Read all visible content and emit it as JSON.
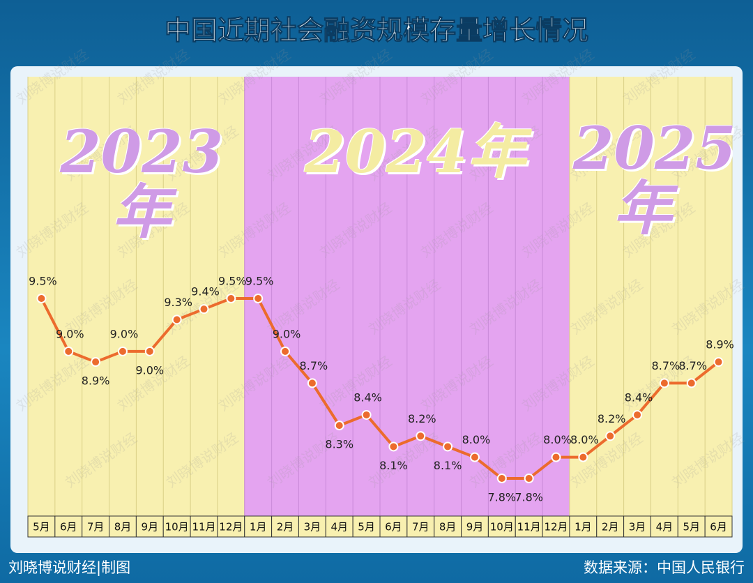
{
  "title": "中国近期社会融资规模存量增长情况",
  "chart_data": {
    "type": "line",
    "color": "#ec6b2d",
    "series": [
      {
        "name": "2023年",
        "band_color": "#f8f0b0",
        "label_color": "#cf9be6",
        "categories": [
          "5月",
          "6月",
          "7月",
          "8月",
          "9月",
          "10月",
          "11月",
          "12月"
        ],
        "values": [
          9.5,
          9.0,
          8.9,
          9.0,
          9.0,
          9.3,
          9.4,
          9.5
        ],
        "value_labels": [
          "9.5%",
          "9.0%",
          "8.9%",
          "9.0%",
          "9.0%",
          "9.3%",
          "9.4%",
          "9.5%"
        ]
      },
      {
        "name": "2024年",
        "band_color": "#e4a4f0",
        "label_color": "#f4eca2",
        "categories": [
          "1月",
          "2月",
          "3月",
          "4月",
          "5月",
          "6月",
          "7月",
          "8月",
          "9月",
          "10月",
          "11月",
          "12月"
        ],
        "values": [
          9.5,
          9.0,
          8.7,
          8.3,
          8.4,
          8.1,
          8.2,
          8.1,
          8.0,
          7.8,
          7.8,
          8.0
        ],
        "value_labels": [
          "9.5%",
          "9.0%",
          "8.7%",
          "8.3%",
          "8.4%",
          "8.1%",
          "8.2%",
          "8.1%",
          "8.0%",
          "7.8%",
          "7.8%",
          "8.0%"
        ]
      },
      {
        "name": "2025年",
        "band_color": "#f8f0b0",
        "label_color": "#cf9be6",
        "categories": [
          "1月",
          "2月",
          "3月",
          "4月",
          "5月",
          "6月"
        ],
        "values": [
          8.0,
          8.2,
          8.4,
          8.7,
          8.7,
          8.9
        ],
        "value_labels": [
          "8.0%",
          "8.2%",
          "8.4%",
          "8.7%",
          "8.7%",
          "8.9%"
        ]
      }
    ]
  },
  "watermark": "刘晓博说财经",
  "footer": {
    "left": "刘晓博说财经|制图",
    "right": "数据来源：中国人民银行"
  }
}
